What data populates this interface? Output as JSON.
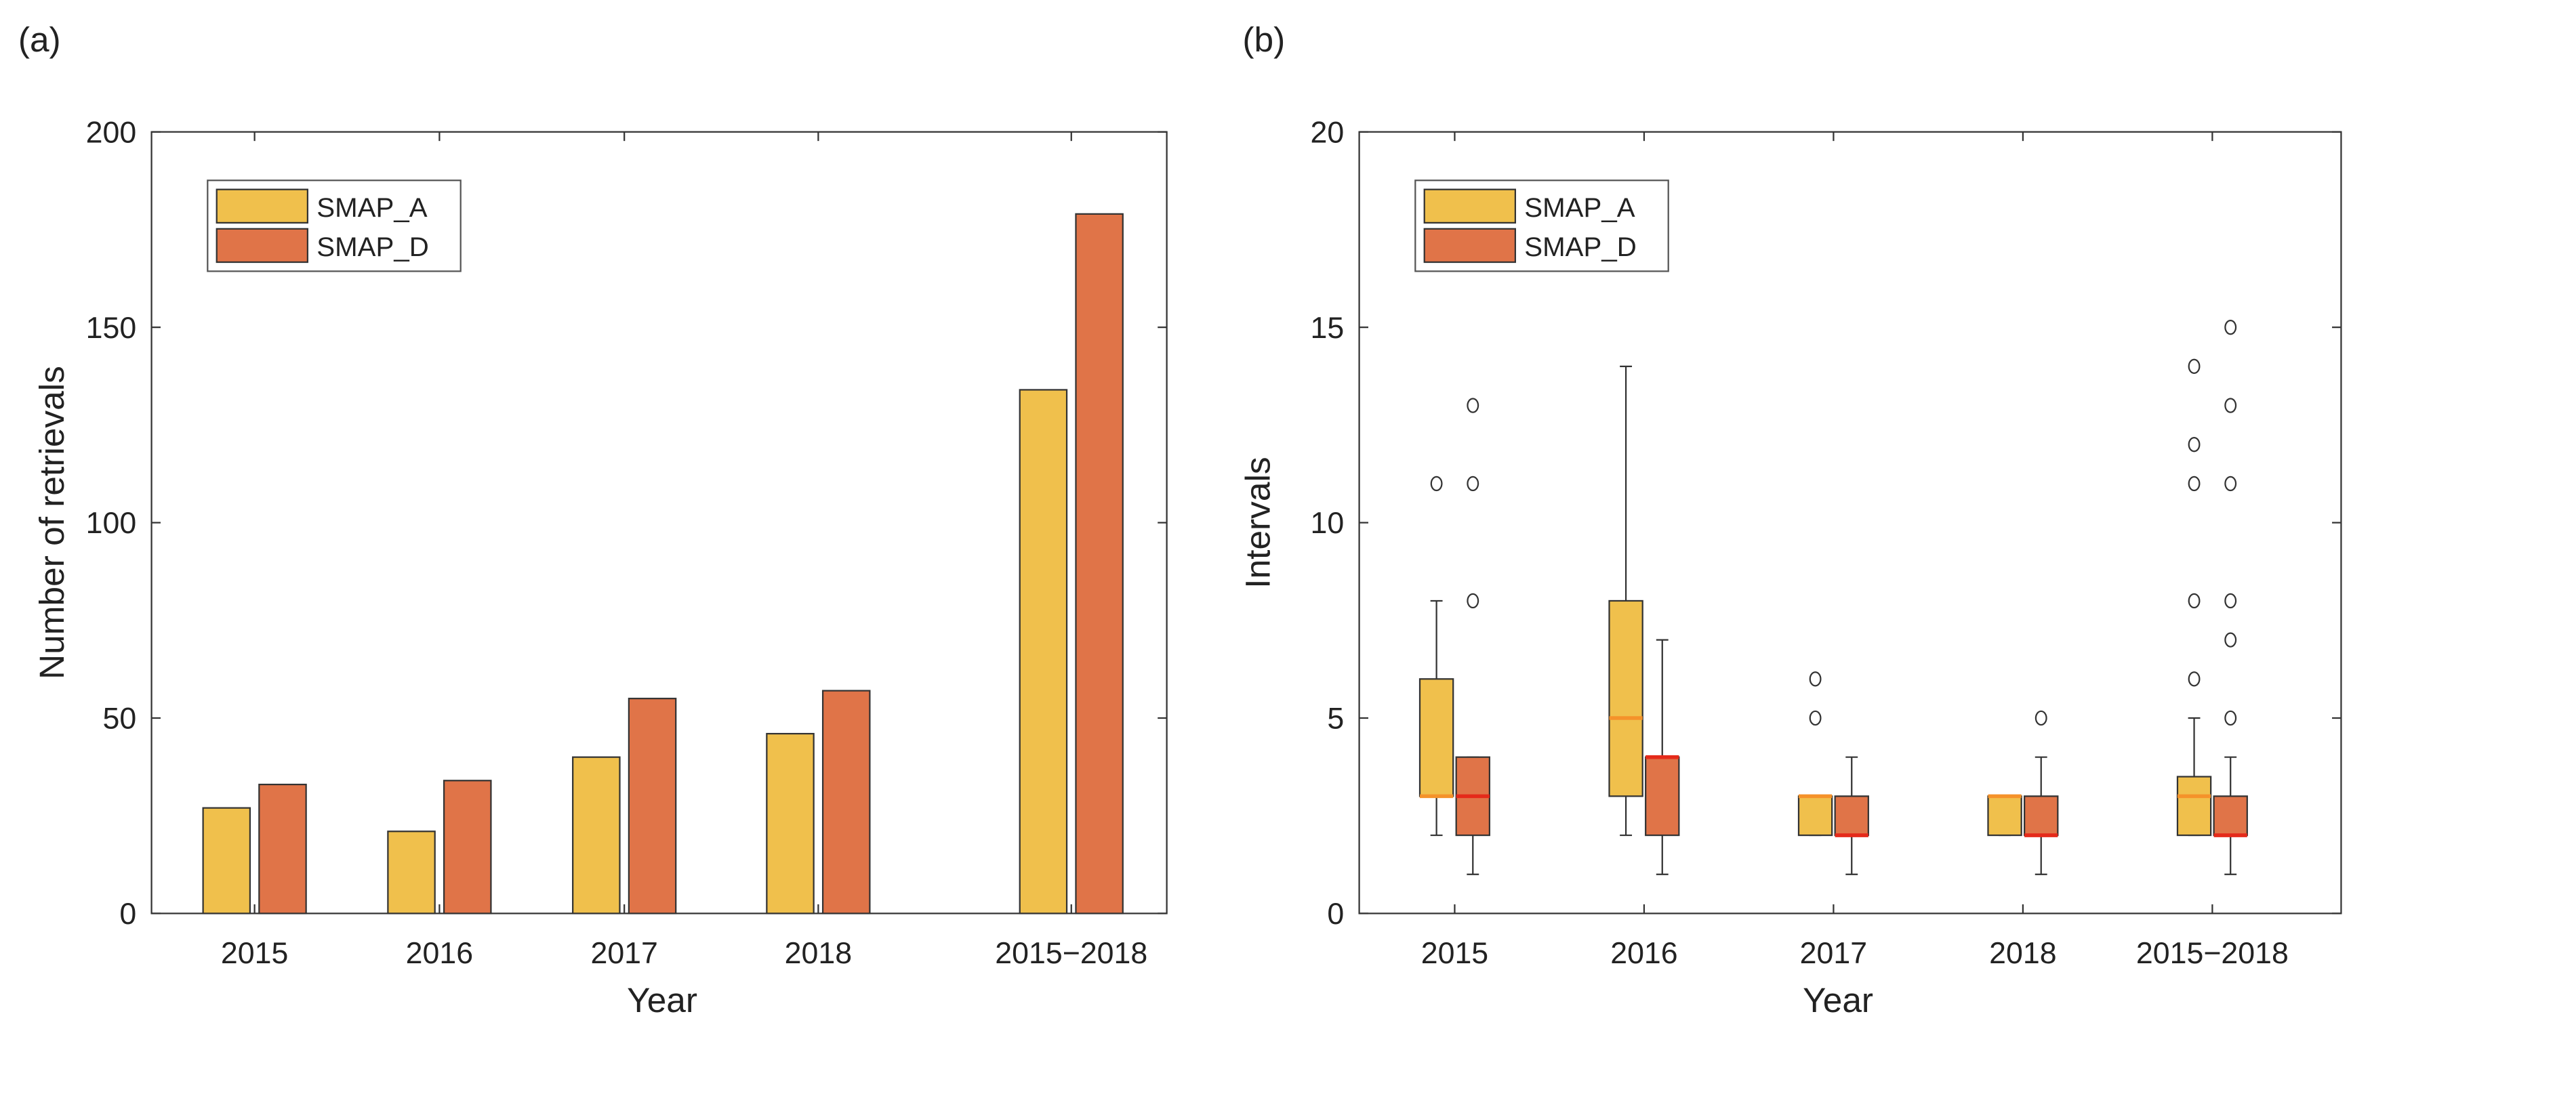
{
  "colors": {
    "SMAP_A": "#f0c04c",
    "SMAP_D": "#e07448",
    "median_A": "#f5922a",
    "median_D": "#e52a1a"
  },
  "chart_data": [
    {
      "type": "bar",
      "panel_label": "(a)",
      "title": "",
      "xlabel": "Year",
      "ylabel": "Number of retrievals",
      "categories": [
        "2015",
        "2016",
        "2017",
        "2018",
        "2015−2018"
      ],
      "series": [
        {
          "name": "SMAP_A",
          "values": [
            27,
            21,
            40,
            46,
            134
          ]
        },
        {
          "name": "SMAP_D",
          "values": [
            33,
            34,
            55,
            57,
            179
          ]
        }
      ],
      "ylim": [
        0,
        200
      ],
      "yticks": [
        "0",
        "50",
        "100",
        "150",
        "200"
      ],
      "legend": "top-left",
      "grid": false
    },
    {
      "type": "box",
      "panel_label": "(b)",
      "title": "",
      "xlabel": "Year",
      "ylabel": "Intervals",
      "categories": [
        "2015",
        "2016",
        "2017",
        "2018",
        "2015−2018"
      ],
      "series": [
        {
          "name": "SMAP_A",
          "boxes": [
            {
              "whisker_low": 2,
              "q1": 3,
              "median": 3,
              "q3": 6,
              "whisker_high": 8,
              "outliers": [
                11
              ]
            },
            {
              "whisker_low": 2,
              "q1": 3,
              "median": 5,
              "q3": 8,
              "whisker_high": 14,
              "outliers": []
            },
            {
              "whisker_low": 2,
              "q1": 2,
              "median": 3,
              "q3": 3,
              "whisker_high": 3,
              "outliers": [
                5,
                6
              ]
            },
            {
              "whisker_low": 2,
              "q1": 2,
              "median": 3,
              "q3": 3,
              "whisker_high": 3,
              "outliers": []
            },
            {
              "whisker_low": 2,
              "q1": 2,
              "median": 3,
              "q3": 3.5,
              "whisker_high": 5,
              "outliers": [
                6,
                8,
                11,
                12,
                14
              ]
            }
          ]
        },
        {
          "name": "SMAP_D",
          "boxes": [
            {
              "whisker_low": 1,
              "q1": 2,
              "median": 3,
              "q3": 4,
              "whisker_high": 4,
              "outliers": [
                8,
                11,
                13
              ]
            },
            {
              "whisker_low": 1,
              "q1": 2,
              "median": 4,
              "q3": 4,
              "whisker_high": 7,
              "outliers": []
            },
            {
              "whisker_low": 1,
              "q1": 2,
              "median": 2,
              "q3": 3,
              "whisker_high": 4,
              "outliers": []
            },
            {
              "whisker_low": 1,
              "q1": 2,
              "median": 2,
              "q3": 3,
              "whisker_high": 4,
              "outliers": [
                5
              ]
            },
            {
              "whisker_low": 1,
              "q1": 2,
              "median": 2,
              "q3": 3,
              "whisker_high": 4,
              "outliers": [
                5,
                7,
                8,
                11,
                13,
                15
              ]
            }
          ]
        }
      ],
      "ylim": [
        0,
        20
      ],
      "yticks": [
        "0",
        "5",
        "10",
        "15",
        "20"
      ],
      "legend": "top-left",
      "grid": false
    }
  ]
}
